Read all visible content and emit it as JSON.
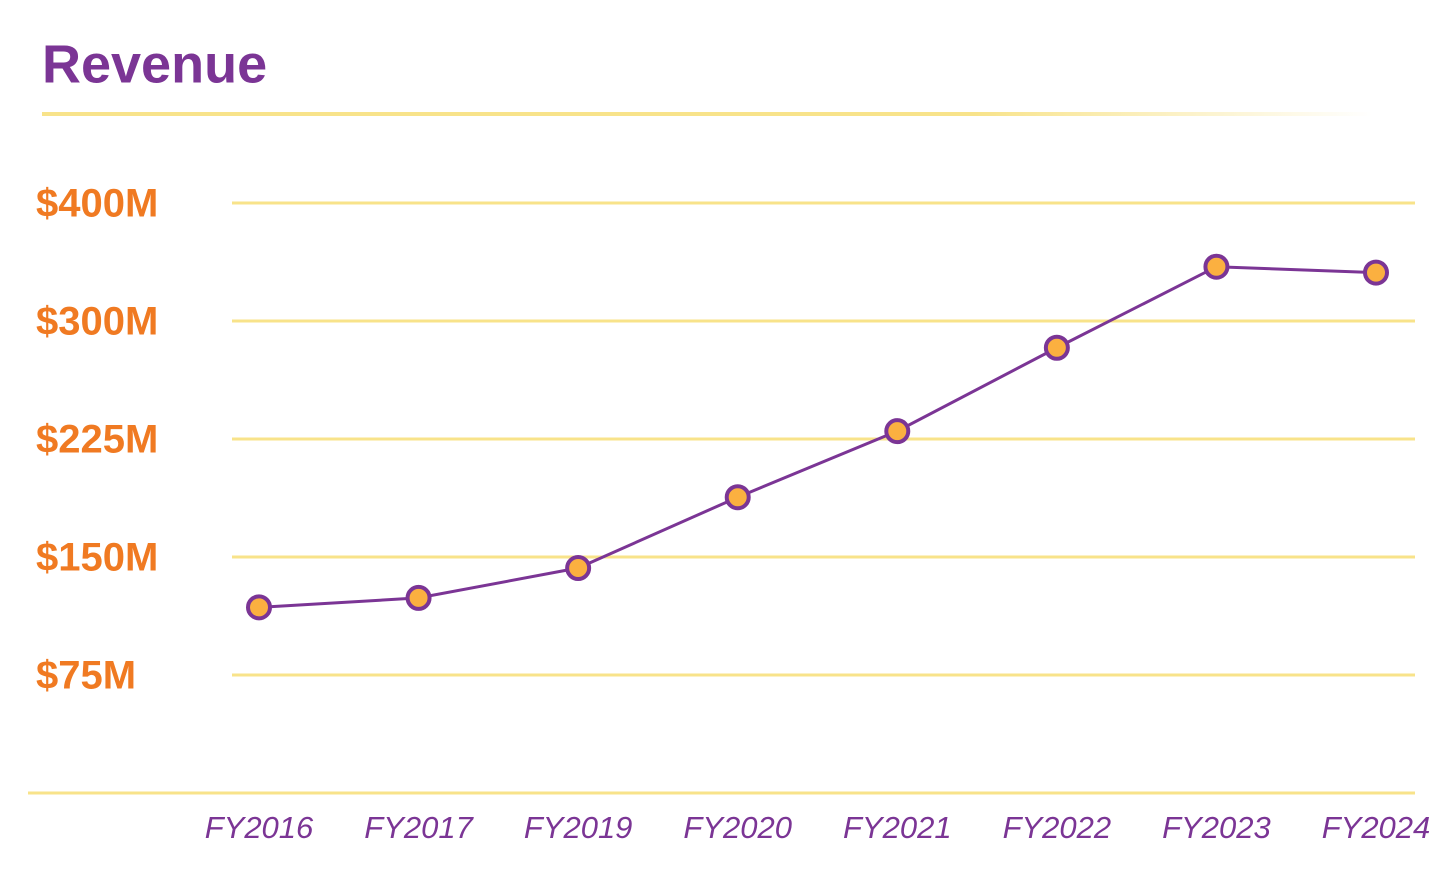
{
  "chart_data": {
    "type": "line",
    "title": "Revenue",
    "categories": [
      "FY2016",
      "FY2017",
      "FY2019",
      "FY2020",
      "FY2021",
      "FY2022",
      "FY2023",
      "FY2024"
    ],
    "series": [
      {
        "name": "Revenue",
        "color": "#7b3595",
        "marker_color": "#fbb040",
        "values": [
          118,
          124,
          143,
          188,
          230,
          283,
          346,
          341
        ]
      }
    ],
    "ylim": [
      0,
      400
    ],
    "yticks": [
      {
        "value": 75,
        "label": "$75M"
      },
      {
        "value": 150,
        "label": "$150M"
      },
      {
        "value": 225,
        "label": "$225M"
      },
      {
        "value": 300,
        "label": "$300M"
      },
      {
        "value": 400,
        "label": "$400M"
      }
    ],
    "ytick_spacing": "even",
    "grid": true
  }
}
